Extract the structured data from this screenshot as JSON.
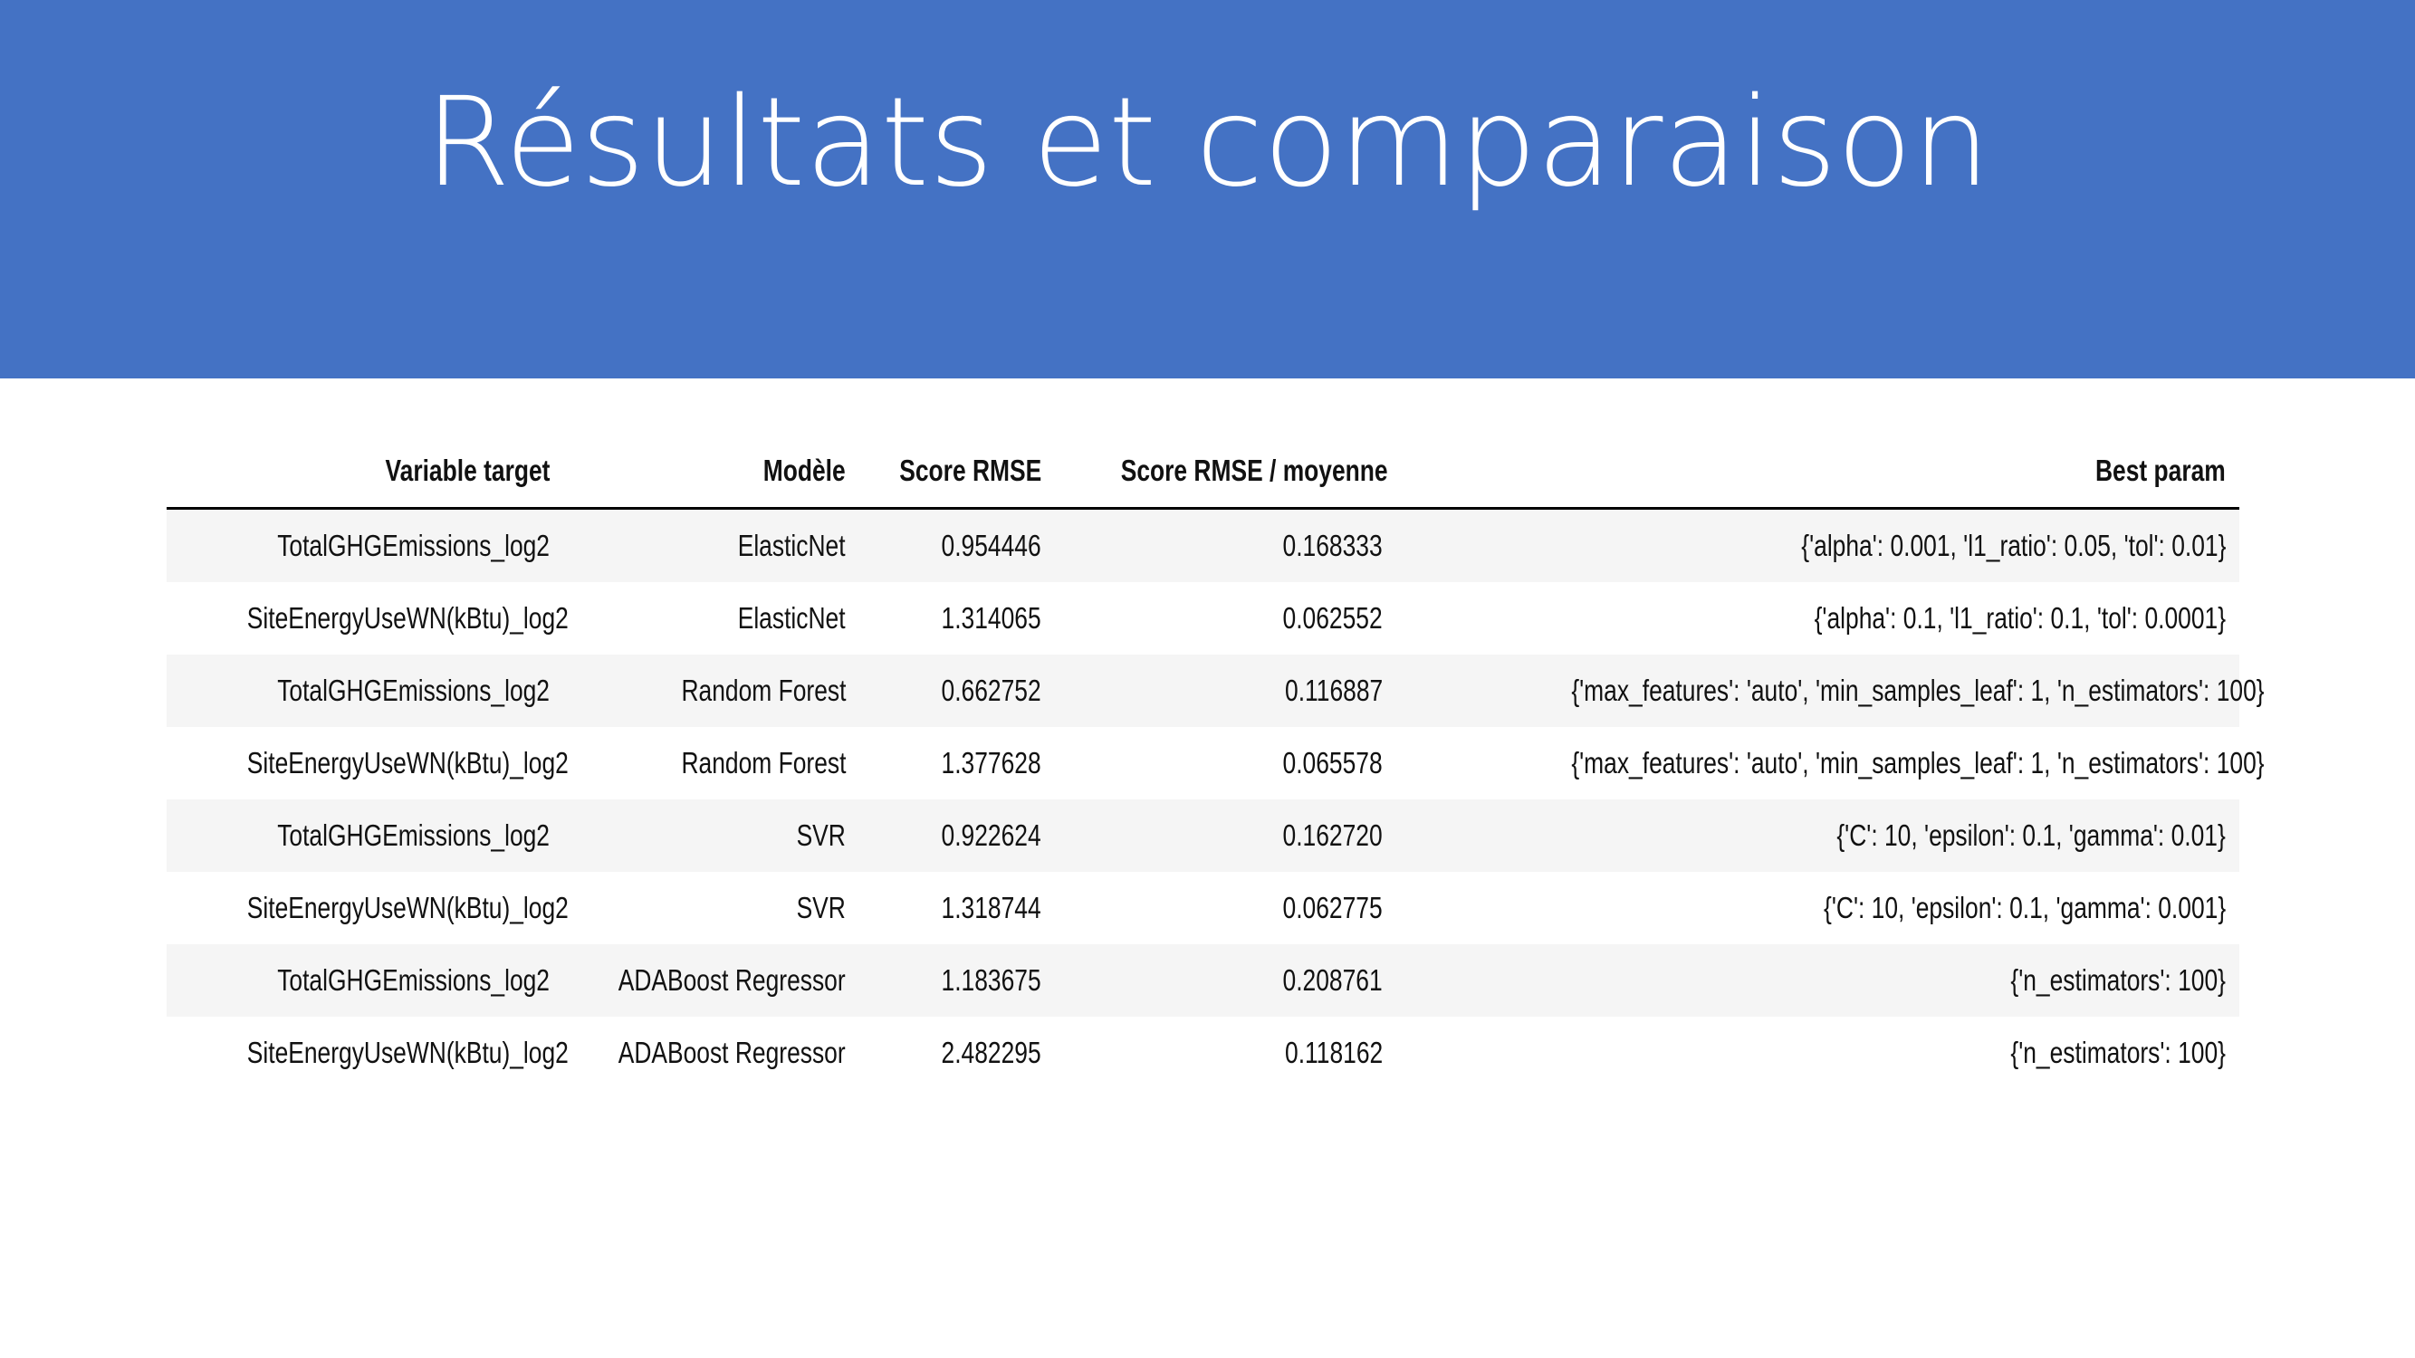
{
  "header": {
    "title": "Résultats et comparaison"
  },
  "table": {
    "columns": [
      "Variable target",
      "Modèle",
      "Score RMSE",
      "Score RMSE / moyenne",
      "Best param"
    ],
    "rows": [
      [
        "TotalGHGEmissions_log2",
        "ElasticNet",
        "0.954446",
        "0.168333",
        "{'alpha': 0.001, 'l1_ratio': 0.05, 'tol': 0.01}"
      ],
      [
        "SiteEnergyUseWN(kBtu)_log2",
        "ElasticNet",
        "1.314065",
        "0.062552",
        "{'alpha': 0.1, 'l1_ratio': 0.1, 'tol': 0.0001}"
      ],
      [
        "TotalGHGEmissions_log2",
        "Random Forest",
        "0.662752",
        "0.116887",
        "{'max_features': 'auto', 'min_samples_leaf': 1, 'n_estimators': 100}"
      ],
      [
        "SiteEnergyUseWN(kBtu)_log2",
        "Random Forest",
        "1.377628",
        "0.065578",
        "{'max_features': 'auto', 'min_samples_leaf': 1, 'n_estimators': 100}"
      ],
      [
        "TotalGHGEmissions_log2",
        "SVR",
        "0.922624",
        "0.162720",
        "{'C': 10, 'epsilon': 0.1, 'gamma': 0.01}"
      ],
      [
        "SiteEnergyUseWN(kBtu)_log2",
        "SVR",
        "1.318744",
        "0.062775",
        "{'C': 10, 'epsilon': 0.1, 'gamma': 0.001}"
      ],
      [
        "TotalGHGEmissions_log2",
        "ADABoost Regressor",
        "1.183675",
        "0.208761",
        "{'n_estimators': 100}"
      ],
      [
        "SiteEnergyUseWN(kBtu)_log2",
        "ADABoost Regressor",
        "2.482295",
        "0.118162",
        "{'n_estimators': 100}"
      ]
    ]
  }
}
